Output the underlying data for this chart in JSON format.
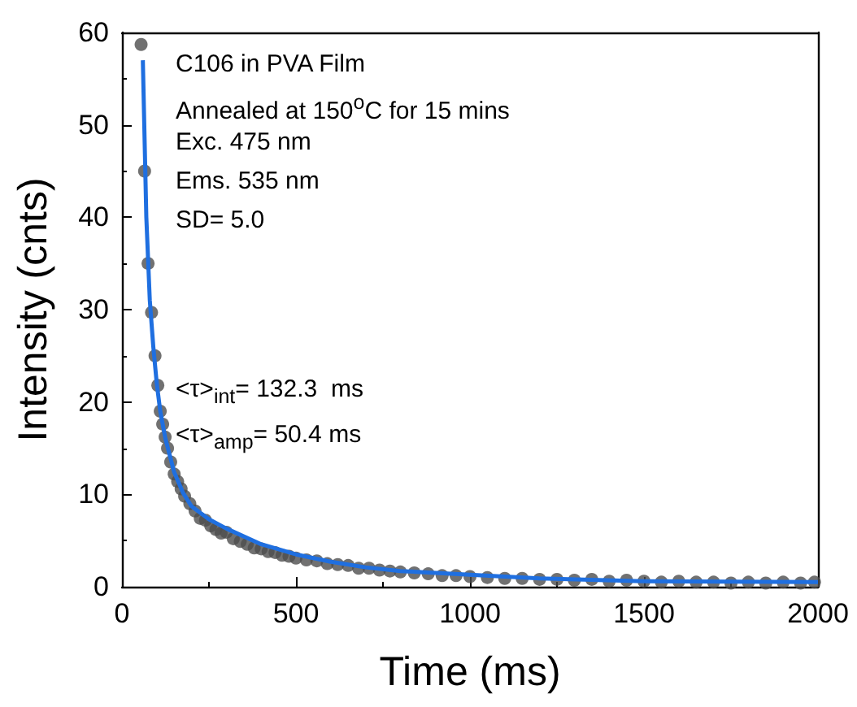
{
  "chart_data": {
    "type": "scatter",
    "xlabel": "Time (ms)",
    "ylabel": "Intensity (cnts)",
    "xlim": [
      0,
      2000
    ],
    "xticks": [
      0,
      500,
      1000,
      1500,
      2000
    ],
    "ylim": [
      0,
      60
    ],
    "yticks": [
      0,
      10,
      20,
      30,
      40,
      50,
      60
    ],
    "annotations": [
      "C106 in PVA Film",
      "Annealed at 150$^{o}$C for 15 mins",
      "Exc. 475 nm",
      "Ems. 535 nm",
      "SD= 5.0",
      "<τ>$_{int}$= 132.3  ms",
      "<τ>$_{amp}$= 50.4 ms"
    ],
    "series": [
      {
        "type": "scatter",
        "marker": "circle",
        "color": "#4d4d4d",
        "x": [
          55,
          65,
          75,
          85,
          95,
          103,
          110,
          117,
          124,
          131,
          140,
          150,
          160,
          170,
          180,
          195,
          210,
          225,
          240,
          255,
          270,
          285,
          300,
          320,
          340,
          360,
          380,
          400,
          420,
          440,
          460,
          480,
          500,
          530,
          560,
          590,
          620,
          650,
          680,
          710,
          740,
          770,
          800,
          840,
          880,
          920,
          960,
          1000,
          1050,
          1100,
          1150,
          1200,
          1250,
          1300,
          1350,
          1400,
          1450,
          1500,
          1550,
          1600,
          1650,
          1700,
          1750,
          1800,
          1850,
          1900,
          1950,
          1990
        ],
        "values": [
          58.7,
          45,
          35,
          29.7,
          25,
          21.8,
          19,
          17.6,
          16.2,
          15,
          13.5,
          12.2,
          11.4,
          10.6,
          9.8,
          9,
          8.2,
          7.4,
          7.2,
          6.6,
          6.2,
          5.8,
          5.9,
          5.2,
          4.9,
          4.6,
          4.2,
          4.1,
          3.8,
          3.7,
          3.4,
          3.3,
          3.1,
          2.9,
          2.8,
          2.5,
          2.4,
          2.3,
          2,
          2,
          1.8,
          1.7,
          1.6,
          1.5,
          1.4,
          1.2,
          1.2,
          1.1,
          1,
          0.9,
          0.9,
          0.8,
          0.8,
          0.7,
          0.8,
          0.6,
          0.7,
          0.6,
          0.5,
          0.6,
          0.5,
          0.5,
          0.4,
          0.5,
          0.4,
          0.5,
          0.4,
          0.5
        ]
      },
      {
        "type": "line",
        "marker": "none",
        "line_style": "solid",
        "color": "#1f6fe0",
        "x": [
          60,
          70,
          80,
          90,
          100,
          110,
          125,
          150,
          175,
          200,
          250,
          300,
          400,
          500,
          600,
          700,
          800,
          1000,
          1200,
          1500,
          2000
        ],
        "values": [
          57,
          40,
          31,
          26,
          22,
          19,
          16,
          12.4,
          10.2,
          8.7,
          7.3,
          6.3,
          4.6,
          3.5,
          2.7,
          2.1,
          1.7,
          1.3,
          0.9,
          0.6,
          0.5
        ]
      }
    ]
  }
}
